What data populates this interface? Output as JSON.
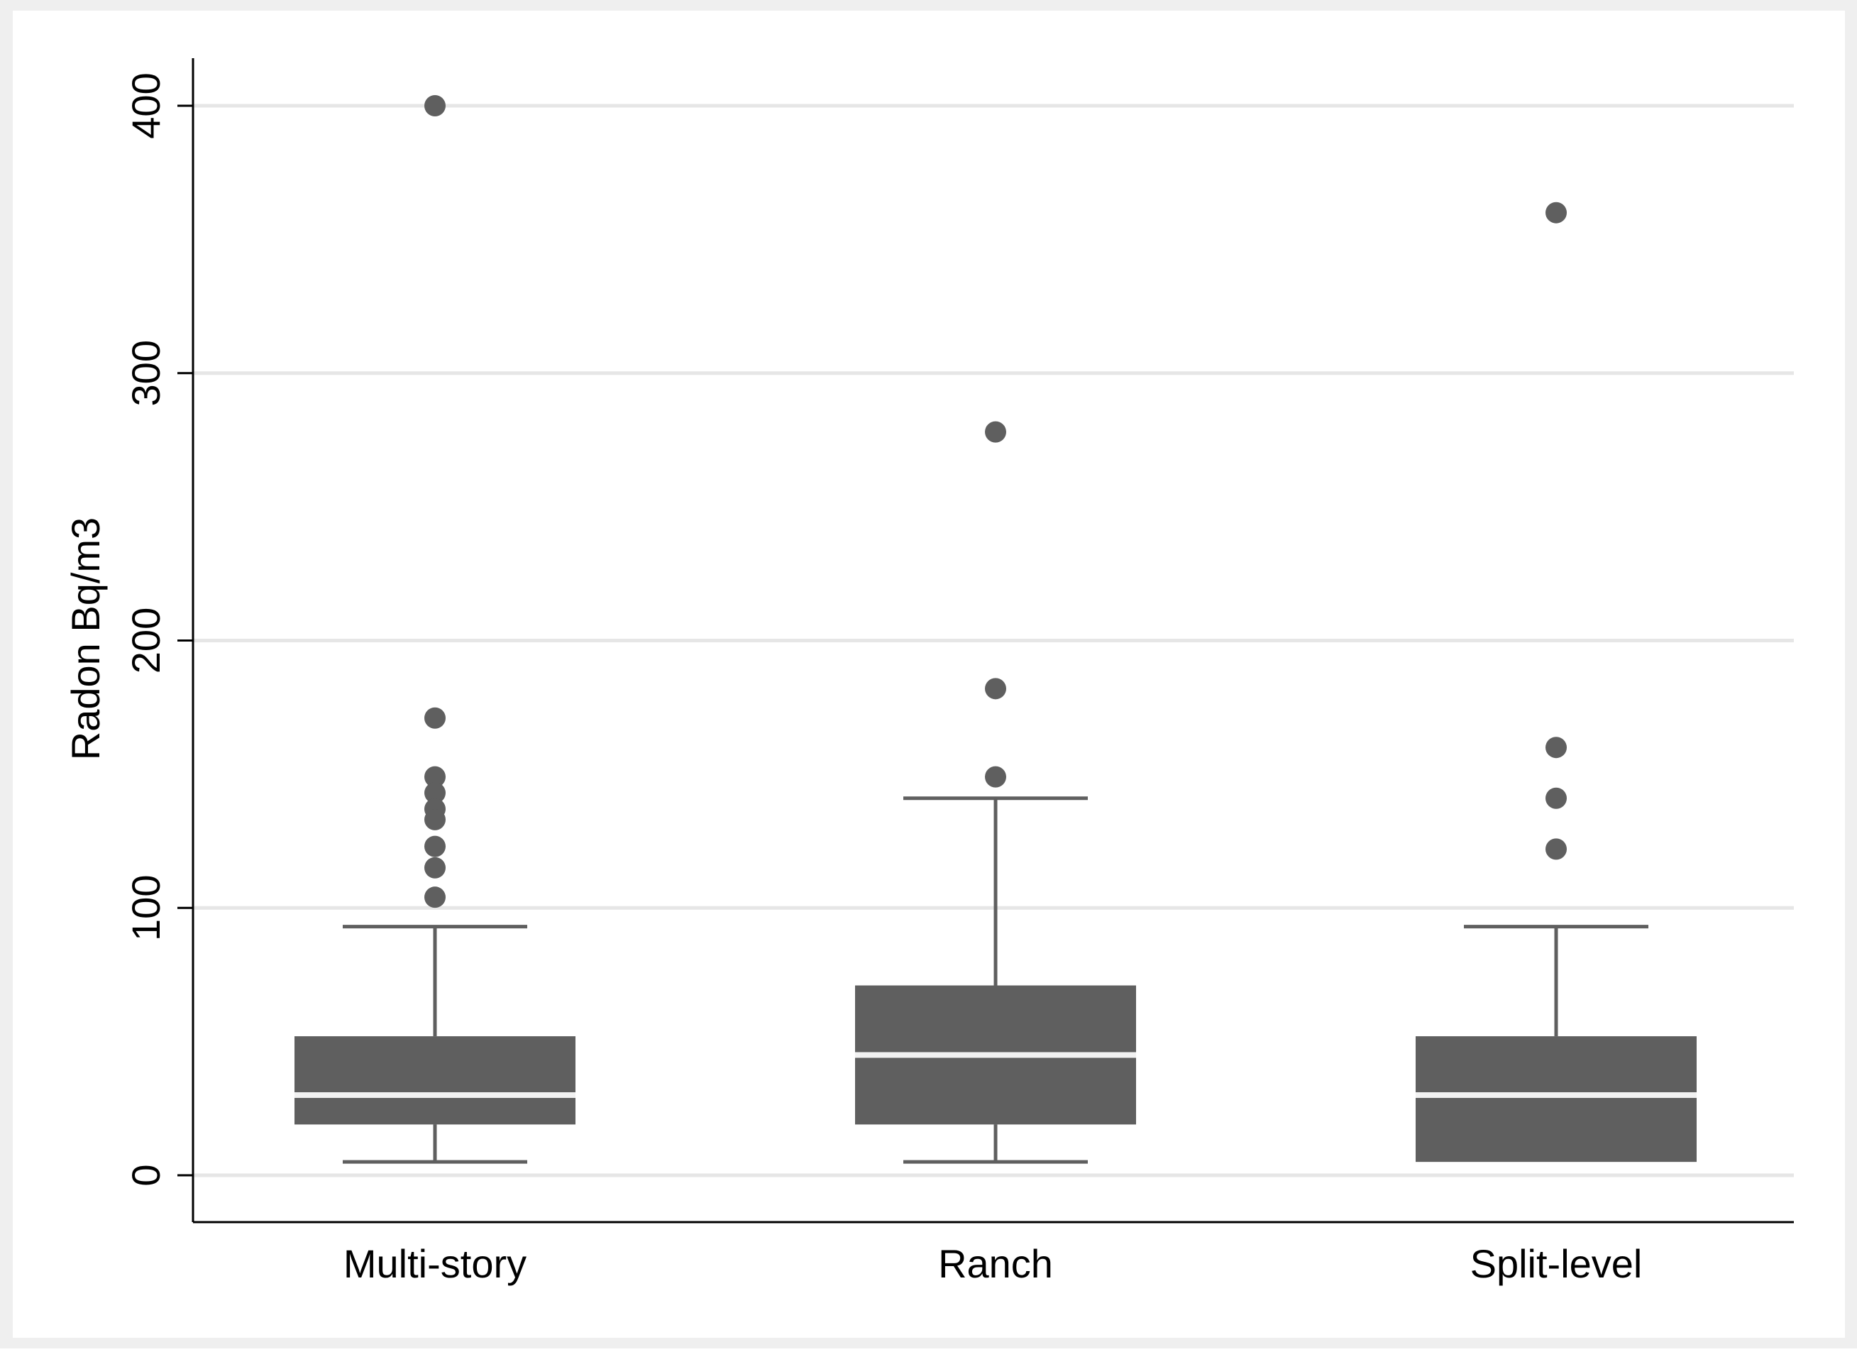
{
  "chart_data": {
    "type": "box",
    "title": "",
    "xlabel": "",
    "ylabel": "Radon Bq/m3",
    "ylim": [
      -18,
      418
    ],
    "yticks": [
      0,
      100,
      200,
      300,
      400
    ],
    "ytick_labels": [
      "0",
      "100",
      "200",
      "300",
      "400"
    ],
    "grid": true,
    "categories": [
      "Multi-story",
      "Ranch",
      "Split-level"
    ],
    "boxes": [
      {
        "category": "Multi-story",
        "whisker_low": 5,
        "q1": 19,
        "median": 30,
        "q3": 52,
        "whisker_high": 93,
        "outliers": [
          400,
          171,
          149,
          143,
          137,
          133,
          123,
          115,
          104
        ]
      },
      {
        "category": "Ranch",
        "whisker_low": 5,
        "q1": 19,
        "median": 45,
        "q3": 71,
        "whisker_high": 141,
        "outliers": [
          278,
          182,
          149
        ]
      },
      {
        "category": "Split-level",
        "whisker_low": 5,
        "q1": 5,
        "median": 30,
        "q3": 52,
        "whisker_high": 93,
        "outliers": [
          360,
          160,
          141,
          122
        ]
      }
    ],
    "colors": {
      "outer_background": "#efefef",
      "plot_background": "#ffffff",
      "box_fill": "#5f5f5f",
      "median_line": "#f2f2f2",
      "gridline": "#e6e6e6",
      "axis": "#000000",
      "text": "#000000"
    }
  }
}
